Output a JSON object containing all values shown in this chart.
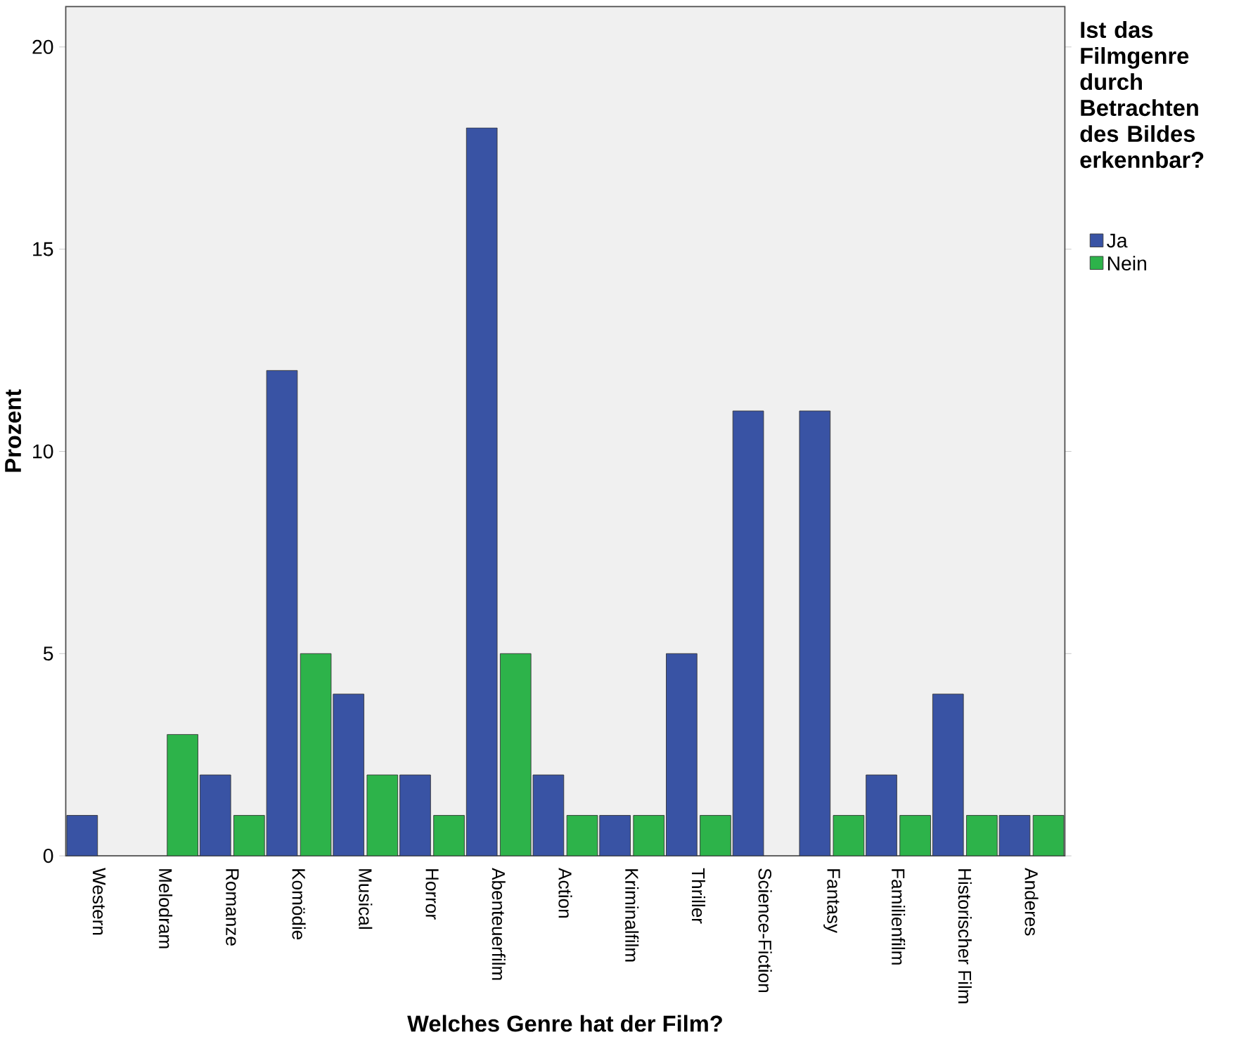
{
  "chart_data": {
    "type": "bar",
    "xlabel": "Welches Genre hat der Film?",
    "ylabel": "Prozent",
    "legend_title": "Ist das Filmgenre durch Betrachten des Bildes erkennbar?",
    "categories": [
      "Western",
      "Melodram",
      "Romanze",
      "Komödie",
      "Musical",
      "Horror",
      "Abenteuerfilm",
      "Action",
      "Kriminalfilm",
      "Thriller",
      "Science-Fiction",
      "Fantasy",
      "Familienfilm",
      "Historischer Film",
      "Anderes"
    ],
    "series": [
      {
        "name": "Ja",
        "color": "#3953a4",
        "values": [
          1,
          null,
          2,
          12,
          4,
          2,
          18,
          2,
          1,
          5,
          11,
          11,
          2,
          4,
          1
        ]
      },
      {
        "name": "Nein",
        "color": "#2db34a",
        "values": [
          null,
          3,
          1,
          5,
          2,
          1,
          5,
          1,
          1,
          1,
          null,
          1,
          1,
          1,
          1
        ]
      }
    ],
    "ylim": [
      0,
      21
    ],
    "yticks": [
      0,
      5,
      10,
      15,
      20
    ],
    "grid": false,
    "legend": "right"
  }
}
